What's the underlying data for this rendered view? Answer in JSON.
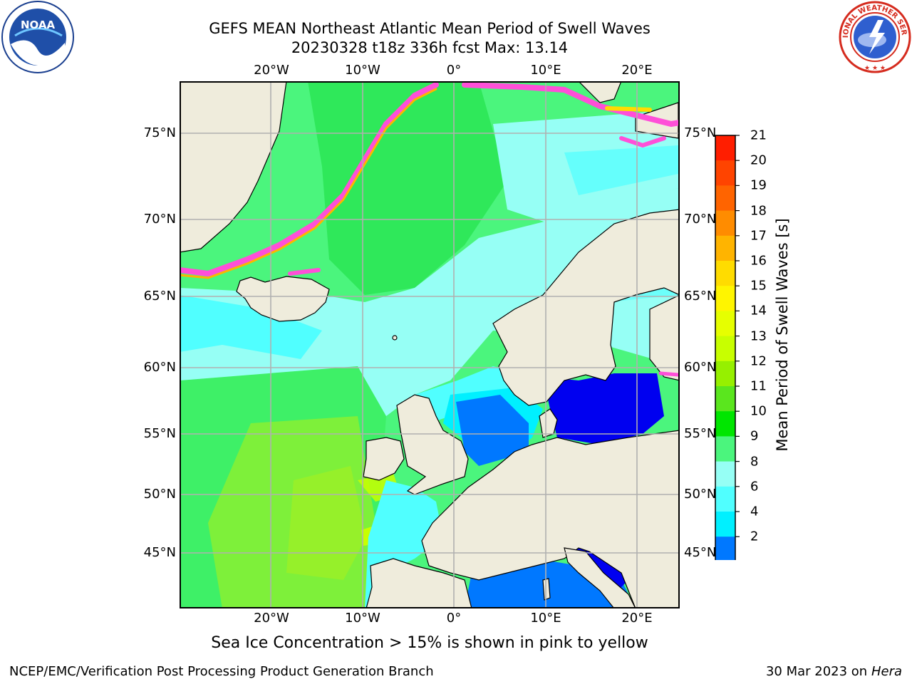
{
  "title": {
    "line1": "GEFS MEAN Northeast Atlantic Mean Period of Swell Waves",
    "line2": "20230328 t18z 336h fcst   Max: 13.14"
  },
  "logos": {
    "left": {
      "text": "NOAA",
      "ring_text": "NATIONAL OCEANIC AND ATMOSPHERIC ADMINISTRATION · U.S. DEPARTMENT OF COMMERCE",
      "icon": "noaa-logo"
    },
    "right": {
      "text": "NATIONAL WEATHER SERVICE",
      "icon": "nws-logo"
    }
  },
  "map": {
    "lon_labels": [
      "20°W",
      "10°W",
      "0°",
      "10°E",
      "20°E"
    ],
    "lat_labels": [
      "75°N",
      "70°N",
      "65°N",
      "60°N",
      "55°N",
      "50°N",
      "45°N"
    ],
    "grid": true,
    "land_color": "#efecdc",
    "ice_note": "Sea Ice Concentration > 15% is shown in pink to yellow"
  },
  "colorbar": {
    "title": "Mean Period of Swell Waves [s]",
    "labels": [
      "21",
      "20",
      "19",
      "18",
      "17",
      "16",
      "15",
      "14",
      "13",
      "12",
      "11",
      "10",
      "9",
      "8",
      "6",
      "4",
      "2"
    ],
    "colors": [
      "#ff1e00",
      "#ff4400",
      "#ff6400",
      "#ff8c00",
      "#ffb400",
      "#ffdc00",
      "#fff500",
      "#e6ff00",
      "#c8ff00",
      "#96f000",
      "#5ae61e",
      "#00e600",
      "#4bf57d",
      "#96fff5",
      "#50ffff",
      "#00f0ff",
      "#0078ff"
    ],
    "under_color": "#0000f0"
  },
  "footer": {
    "credit": "NCEP/EMC/Verification Post Processing Product Generation Branch",
    "date": "30 Mar 2023 on",
    "host": "Hera"
  }
}
